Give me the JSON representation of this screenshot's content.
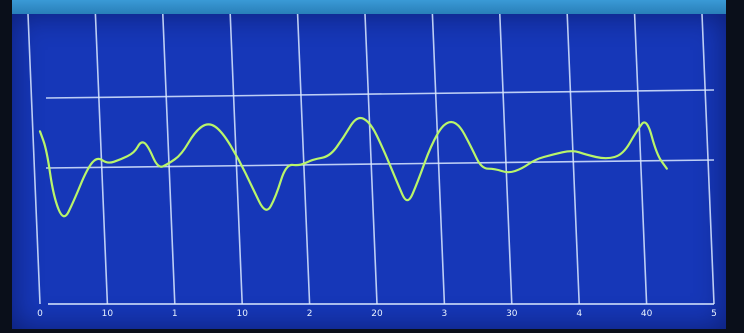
{
  "chart_data": {
    "type": "line",
    "xlabel": "",
    "ylabel": "",
    "title": "",
    "grid": true,
    "x_ticks": [
      "0",
      "10",
      "1",
      "10",
      "2",
      "20",
      "3",
      "30",
      "4",
      "40",
      "5"
    ],
    "ylim": [
      -1.5,
      1.5
    ],
    "series": [
      {
        "color": "#b9f56a",
        "points": [
          [
            0.0,
            0.35
          ],
          [
            0.1,
            0.15
          ],
          [
            0.2,
            -0.35
          ],
          [
            0.35,
            -0.62
          ],
          [
            0.5,
            -0.4
          ],
          [
            0.7,
            -0.05
          ],
          [
            0.85,
            0.08
          ],
          [
            1.0,
            0.0
          ],
          [
            1.2,
            0.05
          ],
          [
            1.4,
            0.12
          ],
          [
            1.5,
            0.25
          ],
          [
            1.6,
            0.2
          ],
          [
            1.75,
            -0.05
          ],
          [
            1.9,
            0.0
          ],
          [
            2.1,
            0.1
          ],
          [
            2.3,
            0.35
          ],
          [
            2.5,
            0.45
          ],
          [
            2.7,
            0.35
          ],
          [
            2.95,
            0.05
          ],
          [
            3.15,
            -0.25
          ],
          [
            3.35,
            -0.55
          ],
          [
            3.5,
            -0.35
          ],
          [
            3.65,
            0.0
          ],
          [
            3.85,
            -0.02
          ],
          [
            4.05,
            0.05
          ],
          [
            4.3,
            0.08
          ],
          [
            4.5,
            0.28
          ],
          [
            4.7,
            0.52
          ],
          [
            4.9,
            0.45
          ],
          [
            5.1,
            0.15
          ],
          [
            5.3,
            -0.2
          ],
          [
            5.45,
            -0.45
          ],
          [
            5.6,
            -0.2
          ],
          [
            5.8,
            0.2
          ],
          [
            6.0,
            0.45
          ],
          [
            6.2,
            0.45
          ],
          [
            6.4,
            0.18
          ],
          [
            6.55,
            -0.05
          ],
          [
            6.75,
            -0.05
          ],
          [
            6.95,
            -0.1
          ],
          [
            7.15,
            -0.05
          ],
          [
            7.35,
            0.05
          ],
          [
            7.6,
            0.1
          ],
          [
            7.9,
            0.15
          ],
          [
            8.1,
            0.1
          ],
          [
            8.4,
            0.05
          ],
          [
            8.65,
            0.1
          ],
          [
            8.85,
            0.35
          ],
          [
            9.0,
            0.5
          ],
          [
            9.15,
            0.1
          ],
          [
            9.3,
            -0.05
          ]
        ]
      }
    ]
  }
}
